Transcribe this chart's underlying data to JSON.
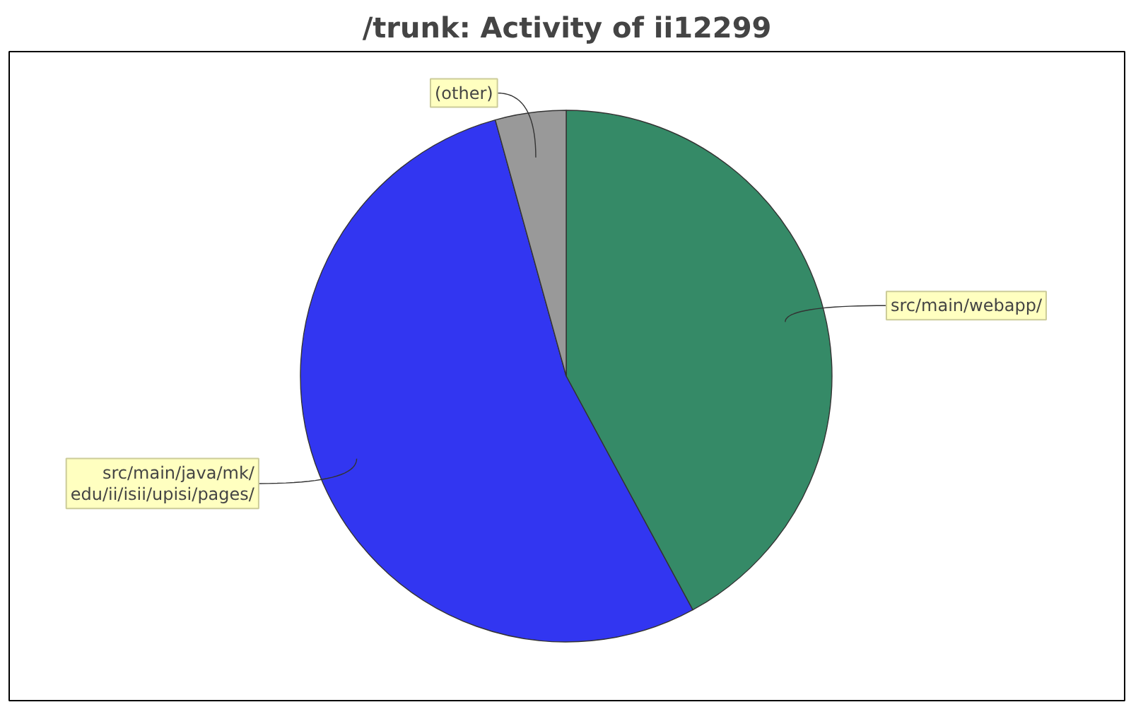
{
  "chart_data": {
    "type": "pie",
    "title": "/trunk: Activity of ii12299",
    "categories": [
      "src/main/webapp/",
      "src/main/java/mk/\nedu/ii/isii/upisi/pages/",
      "(other)"
    ],
    "values": [
      42.1,
      53.6,
      4.3
    ],
    "colors": [
      "#358a67",
      "#3236f1",
      "#999999"
    ]
  }
}
